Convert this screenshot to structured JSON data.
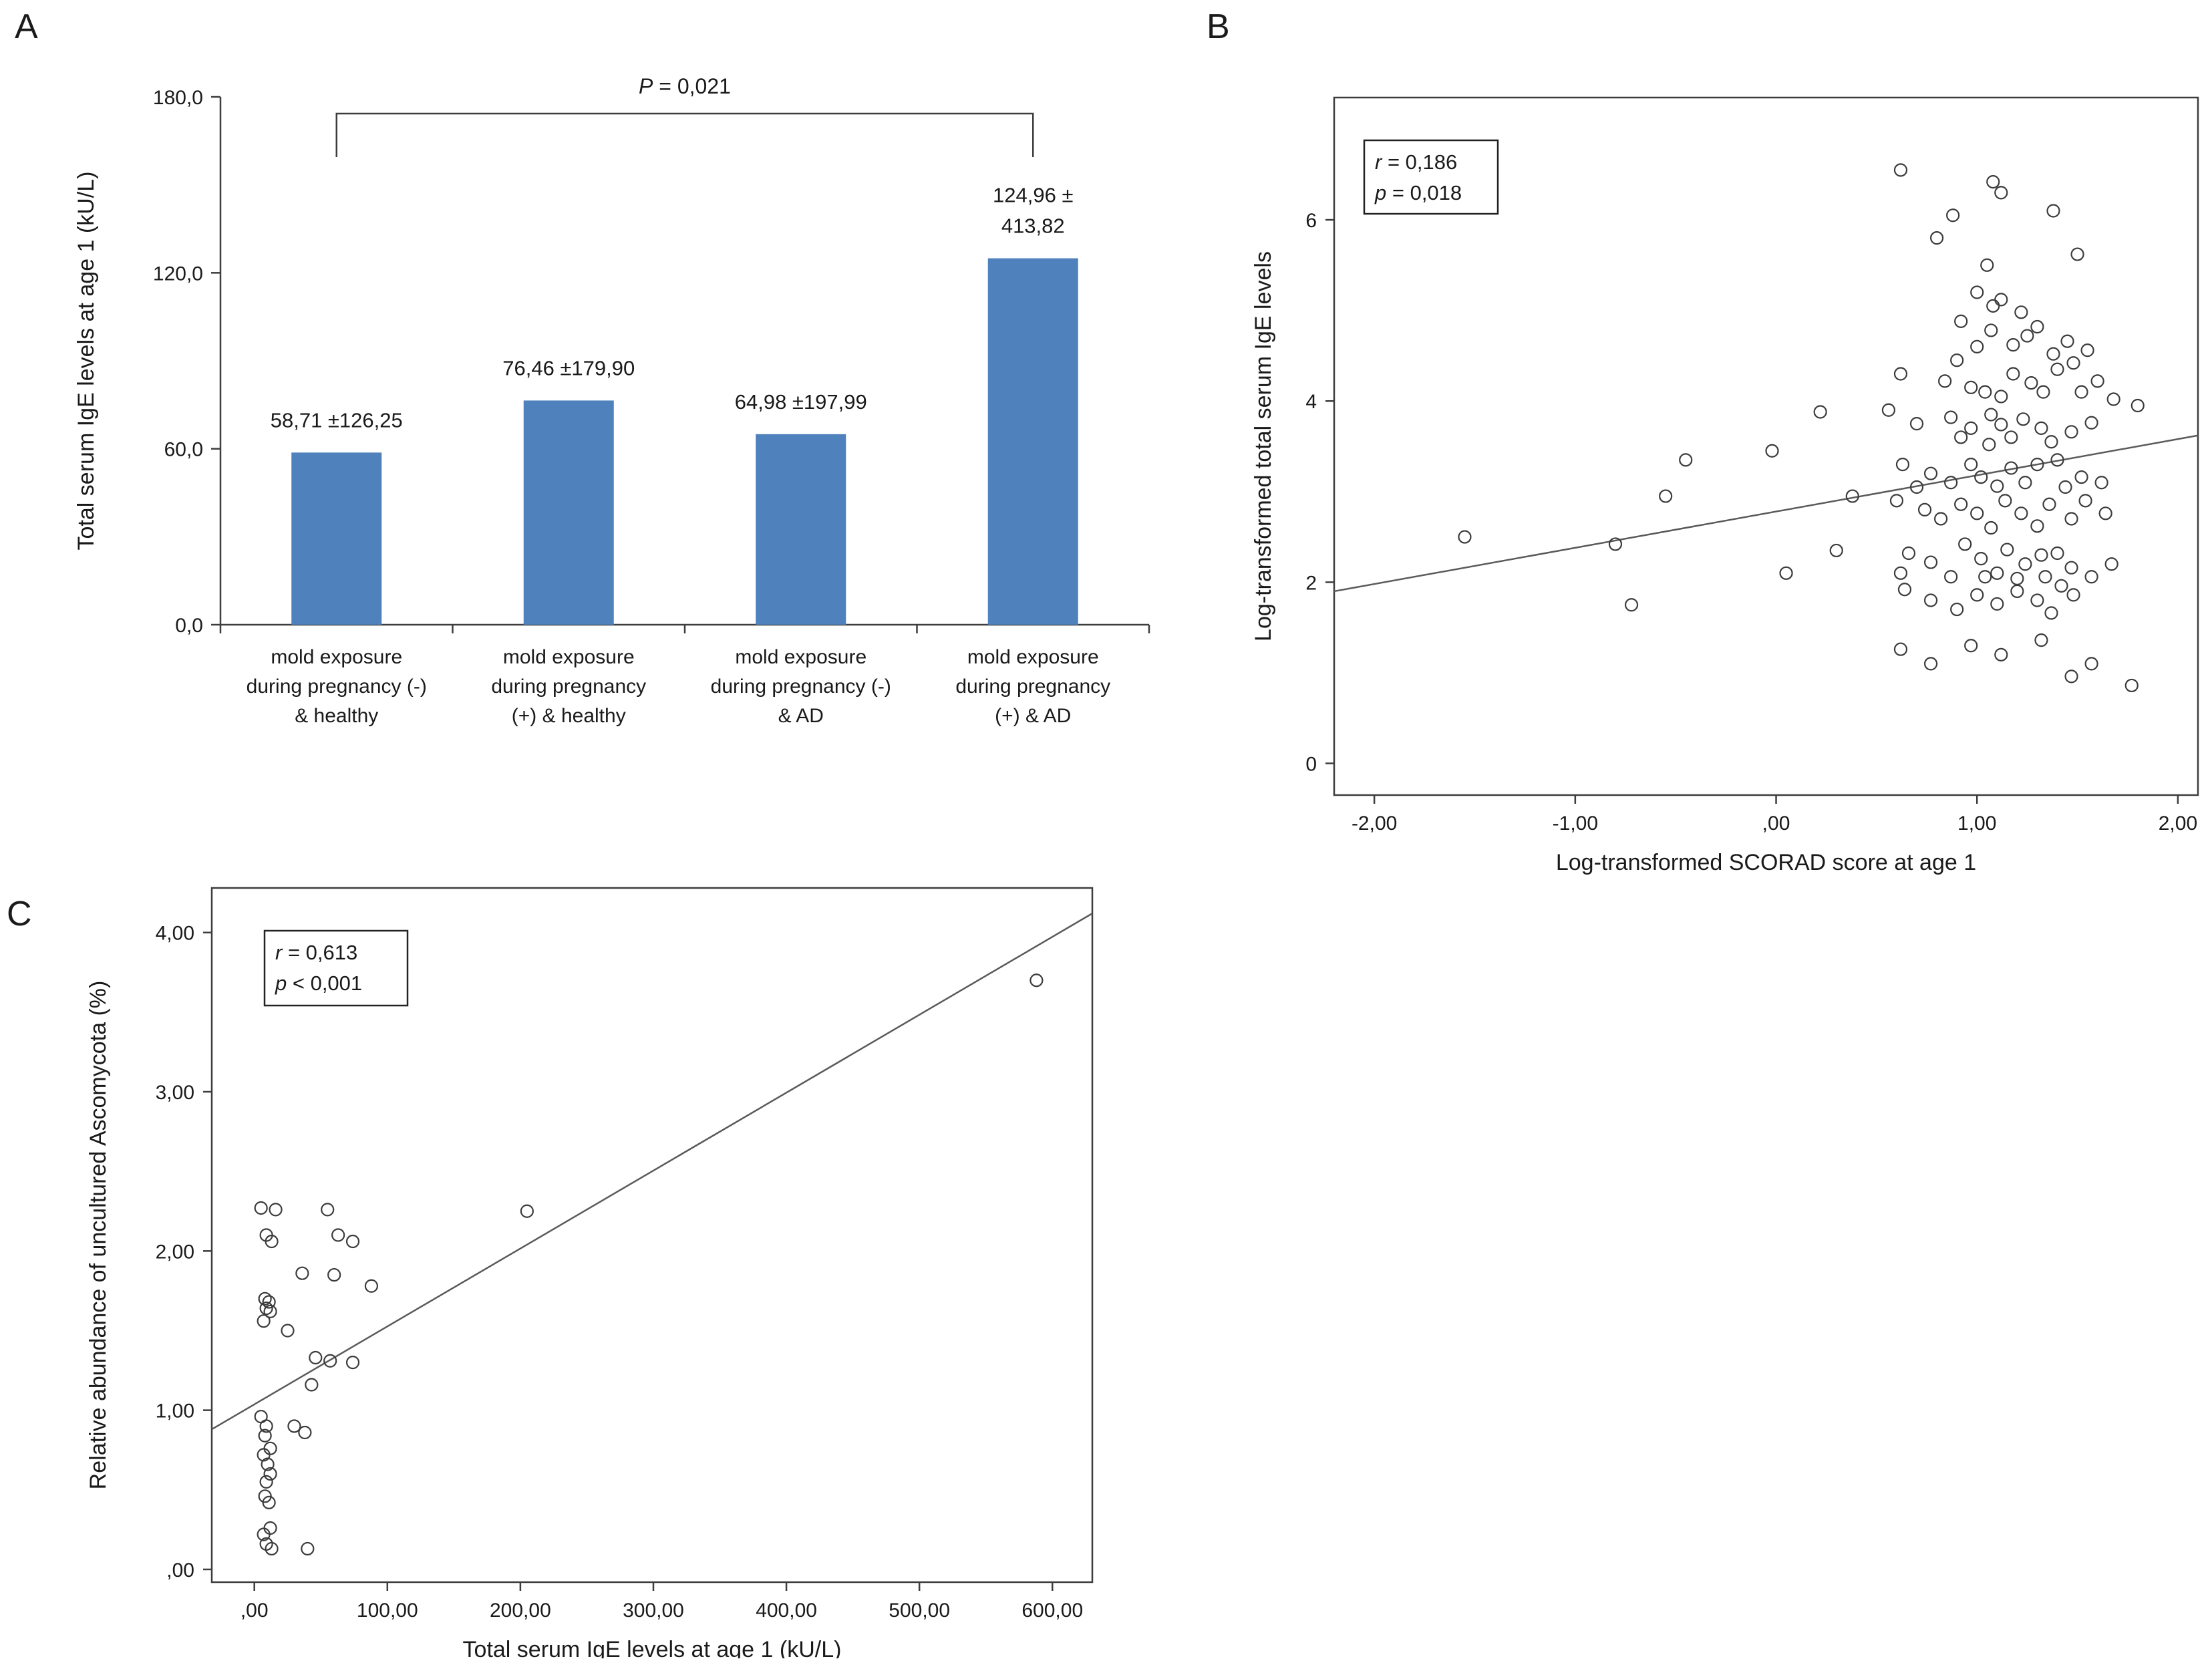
{
  "panel_labels": {
    "a": "A",
    "b": "B",
    "c": "C"
  },
  "chart_data": [
    {
      "type": "bar",
      "panel": "A",
      "ylabel": "Total serum IgE levels at age 1 (kU/L)",
      "yticks": [
        0,
        60,
        120,
        180
      ],
      "ytick_labels": [
        "0,0",
        "60,0",
        "120,0",
        "180,0"
      ],
      "ylim": [
        0,
        180
      ],
      "categories": [
        [
          "mold exposure",
          "during pregnancy (-)",
          "& healthy"
        ],
        [
          "mold exposure",
          "during pregnancy",
          "(+) & healthy"
        ],
        [
          "mold exposure",
          "during pregnancy (-)",
          "& AD"
        ],
        [
          "mold exposure",
          "during pregnancy",
          "(+) & AD"
        ]
      ],
      "values": [
        58.71,
        76.46,
        64.98,
        124.96
      ],
      "value_labels": [
        [
          "58,71 ±126,25"
        ],
        [
          "76,46 ±179,90"
        ],
        [
          "64,98 ±197,99"
        ],
        [
          "124,96 ±",
          "413,82"
        ]
      ],
      "bar_color": "#4f81bd",
      "significance": {
        "text_var": "P",
        "text_rest": " = 0,021",
        "from_bar": 0,
        "to_bar": 3
      }
    },
    {
      "type": "scatter",
      "panel": "B",
      "xlabel": "Log-transformed SCORAD score at age 1",
      "ylabel": "Log-transformed total serum IgE levels",
      "xticks": [
        -2,
        -1,
        0,
        1,
        2
      ],
      "xtick_labels": [
        "-2,00",
        "-1,00",
        ",00",
        "1,00",
        "2,00"
      ],
      "yticks": [
        0,
        2,
        4,
        6
      ],
      "ytick_labels": [
        "0",
        "2",
        "4",
        "6"
      ],
      "xlim": [
        -2.2,
        2.1
      ],
      "ylim": [
        -0.35,
        7.35
      ],
      "annotation": [
        {
          "var": "r",
          "rest": " = 0,186"
        },
        {
          "var": "p",
          "rest": " = 0,018"
        }
      ],
      "trendline": {
        "x": [
          -2.2,
          2.1
        ],
        "y": [
          1.9,
          3.62
        ]
      },
      "points": [
        [
          -1.55,
          2.5
        ],
        [
          -0.8,
          2.42
        ],
        [
          -0.72,
          1.75
        ],
        [
          -0.55,
          2.95
        ],
        [
          -0.45,
          3.35
        ],
        [
          -0.02,
          3.45
        ],
        [
          0.05,
          2.1
        ],
        [
          0.22,
          3.88
        ],
        [
          0.3,
          2.35
        ],
        [
          0.38,
          2.95
        ],
        [
          0.62,
          6.55
        ],
        [
          1.08,
          6.42
        ],
        [
          1.12,
          6.3
        ],
        [
          0.88,
          6.05
        ],
        [
          1.38,
          6.1
        ],
        [
          0.8,
          5.8
        ],
        [
          1.5,
          5.62
        ],
        [
          1.05,
          5.5
        ],
        [
          1.0,
          5.2
        ],
        [
          1.12,
          5.12
        ],
        [
          1.08,
          5.05
        ],
        [
          1.22,
          4.98
        ],
        [
          0.92,
          4.88
        ],
        [
          1.3,
          4.82
        ],
        [
          1.07,
          4.78
        ],
        [
          1.25,
          4.72
        ],
        [
          1.45,
          4.66
        ],
        [
          1.0,
          4.6
        ],
        [
          1.18,
          4.62
        ],
        [
          1.38,
          4.52
        ],
        [
          1.55,
          4.56
        ],
        [
          0.9,
          4.45
        ],
        [
          1.48,
          4.42
        ],
        [
          0.62,
          4.3
        ],
        [
          0.84,
          4.22
        ],
        [
          1.18,
          4.3
        ],
        [
          1.27,
          4.2
        ],
        [
          1.6,
          4.22
        ],
        [
          1.4,
          4.35
        ],
        [
          0.97,
          4.15
        ],
        [
          1.04,
          4.1
        ],
        [
          1.12,
          4.05
        ],
        [
          1.33,
          4.1
        ],
        [
          1.52,
          4.1
        ],
        [
          1.68,
          4.02
        ],
        [
          1.8,
          3.95
        ],
        [
          0.56,
          3.9
        ],
        [
          0.87,
          3.82
        ],
        [
          1.07,
          3.85
        ],
        [
          1.23,
          3.8
        ],
        [
          1.57,
          3.76
        ],
        [
          0.7,
          3.75
        ],
        [
          0.97,
          3.7
        ],
        [
          1.12,
          3.74
        ],
        [
          1.32,
          3.7
        ],
        [
          1.47,
          3.66
        ],
        [
          0.92,
          3.6
        ],
        [
          1.17,
          3.6
        ],
        [
          1.37,
          3.55
        ],
        [
          1.06,
          3.52
        ],
        [
          0.63,
          3.3
        ],
        [
          0.97,
          3.3
        ],
        [
          1.17,
          3.26
        ],
        [
          1.3,
          3.3
        ],
        [
          1.4,
          3.35
        ],
        [
          0.77,
          3.2
        ],
        [
          1.02,
          3.16
        ],
        [
          1.24,
          3.1
        ],
        [
          1.52,
          3.16
        ],
        [
          1.62,
          3.1
        ],
        [
          0.87,
          3.1
        ],
        [
          1.1,
          3.06
        ],
        [
          1.44,
          3.05
        ],
        [
          0.7,
          3.05
        ],
        [
          0.6,
          2.9
        ],
        [
          0.92,
          2.86
        ],
        [
          1.14,
          2.9
        ],
        [
          1.36,
          2.86
        ],
        [
          1.54,
          2.9
        ],
        [
          0.74,
          2.8
        ],
        [
          1.22,
          2.76
        ],
        [
          1.0,
          2.76
        ],
        [
          0.82,
          2.7
        ],
        [
          1.3,
          2.62
        ],
        [
          1.47,
          2.7
        ],
        [
          1.64,
          2.76
        ],
        [
          1.07,
          2.6
        ],
        [
          0.94,
          2.42
        ],
        [
          1.15,
          2.36
        ],
        [
          0.66,
          2.32
        ],
        [
          1.4,
          2.32
        ],
        [
          0.77,
          2.22
        ],
        [
          1.02,
          2.26
        ],
        [
          1.24,
          2.2
        ],
        [
          1.67,
          2.2
        ],
        [
          1.32,
          2.3
        ],
        [
          0.62,
          2.1
        ],
        [
          0.87,
          2.06
        ],
        [
          1.1,
          2.1
        ],
        [
          1.47,
          2.16
        ],
        [
          1.2,
          2.04
        ],
        [
          1.04,
          2.06
        ],
        [
          1.57,
          2.06
        ],
        [
          1.34,
          2.06
        ],
        [
          0.64,
          1.92
        ],
        [
          1.0,
          1.86
        ],
        [
          1.2,
          1.9
        ],
        [
          1.42,
          1.96
        ],
        [
          0.77,
          1.8
        ],
        [
          0.9,
          1.7
        ],
        [
          1.1,
          1.76
        ],
        [
          1.3,
          1.8
        ],
        [
          1.48,
          1.86
        ],
        [
          1.37,
          1.66
        ],
        [
          0.62,
          1.26
        ],
        [
          0.97,
          1.3
        ],
        [
          1.32,
          1.36
        ],
        [
          1.12,
          1.2
        ],
        [
          0.77,
          1.1
        ],
        [
          1.57,
          1.1
        ],
        [
          1.47,
          0.96
        ],
        [
          1.77,
          0.86
        ]
      ]
    },
    {
      "type": "scatter",
      "panel": "C",
      "xlabel": "Total serum IgE levels at age 1 (kU/L)",
      "ylabel": "Relative abundance of uncultured Ascomycota (%)",
      "xticks": [
        0,
        100,
        200,
        300,
        400,
        500,
        600
      ],
      "xtick_labels": [
        ",00",
        "100,00",
        "200,00",
        "300,00",
        "400,00",
        "500,00",
        "600,00"
      ],
      "yticks": [
        0,
        1,
        2,
        3,
        4
      ],
      "ytick_labels": [
        ",00",
        "1,00",
        "2,00",
        "3,00",
        "4,00"
      ],
      "xlim": [
        -32,
        630
      ],
      "ylim": [
        -0.08,
        4.28
      ],
      "annotation": [
        {
          "var": "r",
          "rest": " = 0,613"
        },
        {
          "var": "p",
          "rest": " < 0,001"
        }
      ],
      "trendline": {
        "x": [
          -32,
          630
        ],
        "y": [
          0.88,
          4.12
        ]
      },
      "points": [
        [
          5,
          2.27
        ],
        [
          16,
          2.26
        ],
        [
          9,
          2.1
        ],
        [
          13,
          2.06
        ],
        [
          55,
          2.26
        ],
        [
          63,
          2.1
        ],
        [
          74,
          2.06
        ],
        [
          36,
          1.86
        ],
        [
          60,
          1.85
        ],
        [
          88,
          1.78
        ],
        [
          8,
          1.7
        ],
        [
          11,
          1.68
        ],
        [
          9,
          1.64
        ],
        [
          12,
          1.62
        ],
        [
          7,
          1.56
        ],
        [
          25,
          1.5
        ],
        [
          46,
          1.33
        ],
        [
          57,
          1.31
        ],
        [
          74,
          1.3
        ],
        [
          43,
          1.16
        ],
        [
          5,
          0.96
        ],
        [
          9,
          0.9
        ],
        [
          30,
          0.9
        ],
        [
          38,
          0.86
        ],
        [
          8,
          0.84
        ],
        [
          12,
          0.76
        ],
        [
          7,
          0.72
        ],
        [
          10,
          0.66
        ],
        [
          12,
          0.6
        ],
        [
          9,
          0.55
        ],
        [
          8,
          0.46
        ],
        [
          11,
          0.42
        ],
        [
          12,
          0.26
        ],
        [
          7,
          0.22
        ],
        [
          9,
          0.16
        ],
        [
          13,
          0.13
        ],
        [
          40,
          0.13
        ],
        [
          205,
          2.25
        ],
        [
          588,
          3.7
        ]
      ]
    }
  ]
}
